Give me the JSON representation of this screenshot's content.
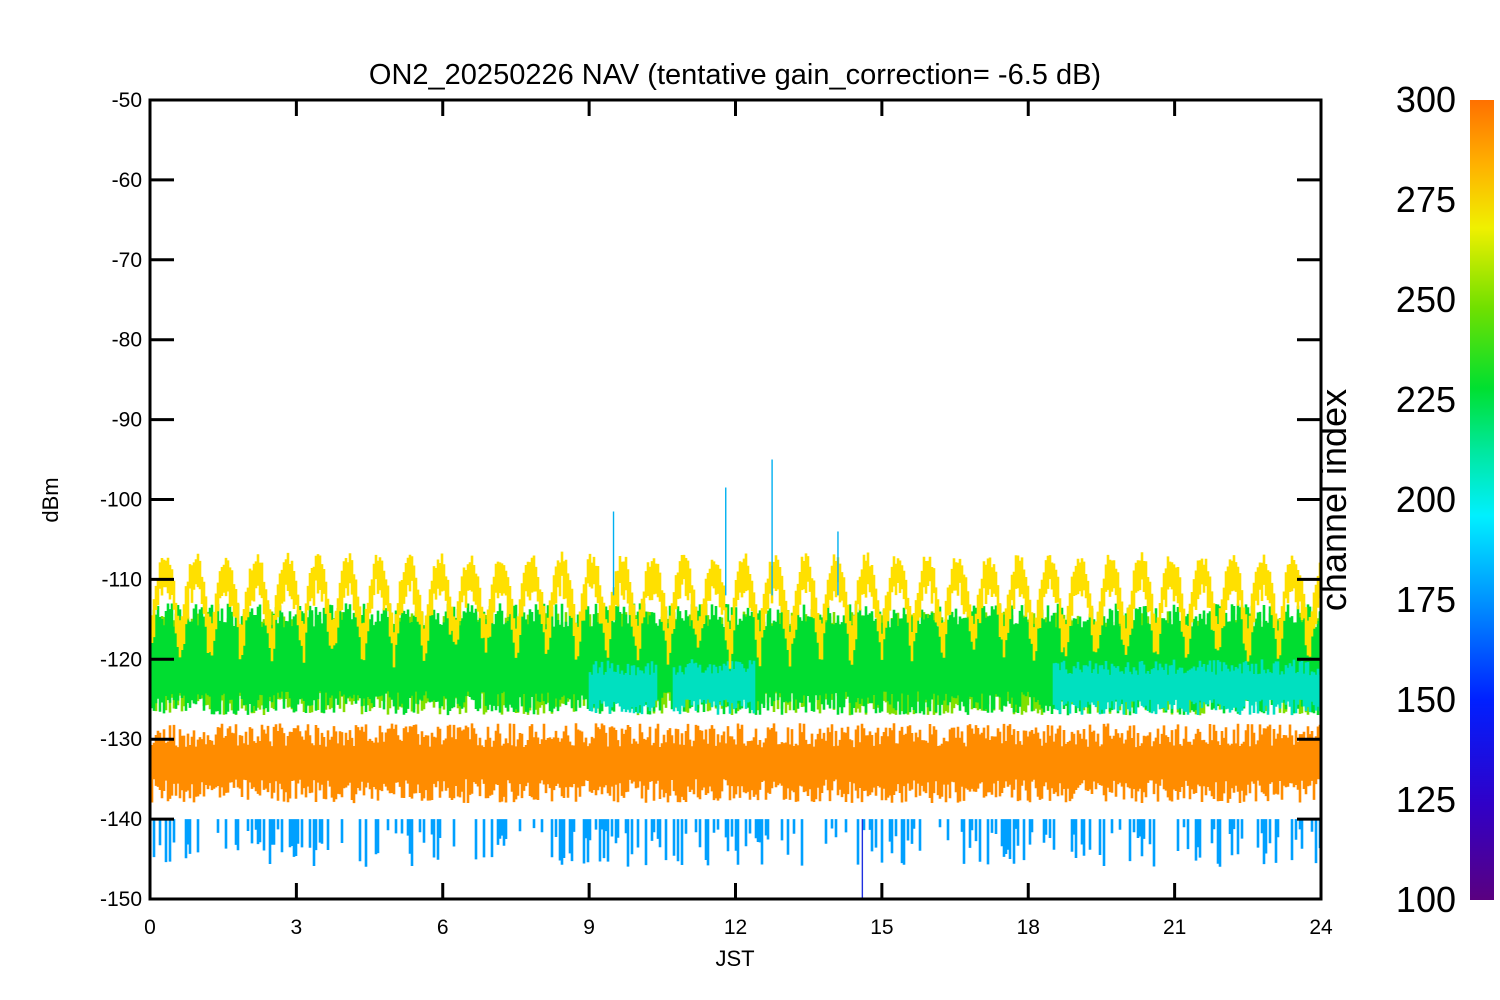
{
  "chart_data": {
    "type": "scatter",
    "title": "ON2_20250226 NAV (tentative gain_correction= -6.5 dB)",
    "xlabel": "JST",
    "ylabel": "dBm",
    "xlim": [
      0,
      24
    ],
    "ylim": [
      -150,
      -50
    ],
    "xticks": [
      0,
      3,
      6,
      9,
      12,
      15,
      18,
      21,
      24
    ],
    "yticks": [
      -50,
      -60,
      -70,
      -80,
      -90,
      -100,
      -110,
      -120,
      -130,
      -140,
      -150
    ],
    "colorbar": {
      "label": "channel index",
      "range": [
        100,
        300
      ],
      "ticks": [
        100,
        125,
        150,
        175,
        200,
        225,
        250,
        275,
        300
      ],
      "colormap": "rainbow (purple-blue-cyan-green-yellow-orange)"
    },
    "series": [
      {
        "channel_index": 295,
        "color": "#ff8c00",
        "band": "noise floor",
        "dbm_range": [
          -138,
          -128
        ],
        "center_dbm": -133
      },
      {
        "channel_index": 275,
        "color": "#ffe000",
        "band": "periodic peaks",
        "dbm_range": [
          -118,
          -108
        ],
        "center_dbm": -112
      },
      {
        "channel_index": 245,
        "color": "#80e000",
        "band": "mid-level",
        "dbm_range": [
          -127,
          -114
        ],
        "center_dbm": -120
      },
      {
        "channel_index": 225,
        "color": "#00dd30",
        "band": "mid-level",
        "dbm_range": [
          -127,
          -113
        ],
        "center_dbm": -122
      },
      {
        "channel_index": 190,
        "color": "#00e0c0",
        "band": "afternoon dip",
        "dbm_range": [
          -127,
          -120
        ],
        "center_dbm": -124
      },
      {
        "channel_index": 160,
        "color": "#00a0ff",
        "band": "low tail",
        "dbm_range": [
          -146,
          -140
        ],
        "center_dbm": -142
      }
    ],
    "spikes": [
      {
        "x": 9.5,
        "y": -101.5
      },
      {
        "x": 11.8,
        "y": -98.5
      },
      {
        "x": 12.75,
        "y": -95
      },
      {
        "x": 14.1,
        "y": -104
      },
      {
        "x": 14.6,
        "y": -150
      }
    ]
  }
}
